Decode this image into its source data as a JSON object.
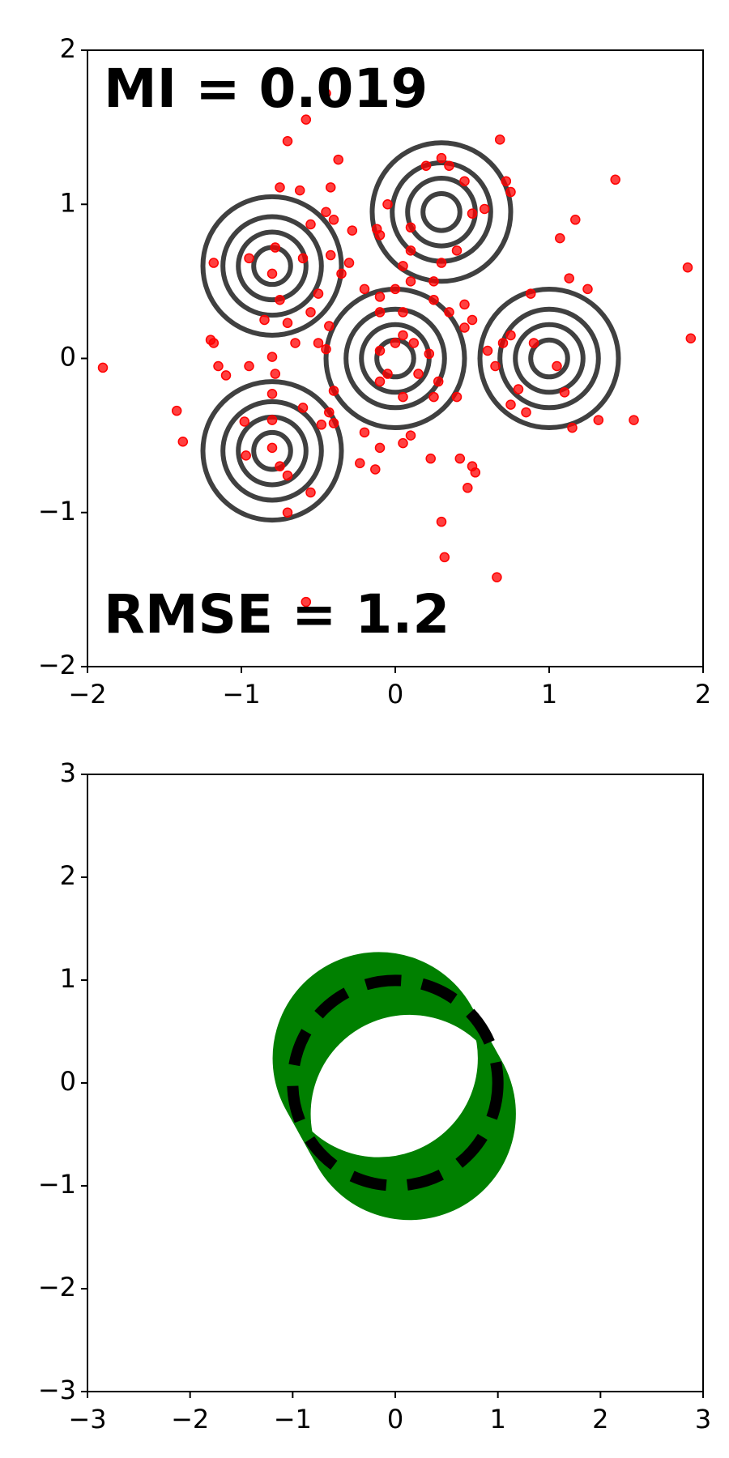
{
  "chart_data": [
    {
      "type": "scatter",
      "annotations": [
        {
          "text": "MI = 0.019"
        },
        {
          "text": "RMSE = 1.2"
        }
      ],
      "x": [
        -1.9,
        -0.45,
        -0.58,
        -0.7,
        -0.37,
        0.68,
        1.43,
        0.72,
        0.75,
        -0.75,
        -0.62,
        -0.42,
        -0.45,
        -0.4,
        -0.55,
        -0.28,
        -0.12,
        -0.1,
        0.1,
        0.5,
        0.58,
        1.17,
        1.07,
        1.9,
        1.92,
        -1.18,
        -0.95,
        -0.78,
        -0.6,
        -0.42,
        -0.3,
        -0.35,
        -0.8,
        -0.75,
        -0.85,
        -0.7,
        -0.5,
        -0.55,
        -0.5,
        -0.65,
        -0.8,
        -0.78,
        -0.95,
        -1.18,
        -1.2,
        -1.15,
        -1.1,
        -0.43,
        -0.45,
        -0.4,
        -0.43,
        -0.48,
        -0.6,
        -0.4,
        -1.42,
        -1.38,
        -0.98,
        -0.97,
        -0.8,
        -0.8,
        -0.8,
        -0.75,
        -0.7,
        -0.7,
        -0.55,
        -0.58,
        -0.2,
        -0.23,
        -0.13,
        -0.1,
        0.05,
        0.1,
        0.23,
        0.42,
        0.5,
        0.52,
        0.47,
        0.3,
        0.32,
        0.66,
        -0.2,
        -0.1,
        0,
        0.1,
        0.25,
        0.35,
        0.45,
        0.5,
        0.45,
        0.6,
        0.7,
        0.75,
        0.65,
        0.8,
        0.75,
        0.85,
        1.15,
        1.32,
        1.55,
        1.05,
        1.1,
        0.9,
        1.25,
        1.13,
        0.88,
        0,
        0.05,
        0.12,
        -0.1,
        -0.05,
        0.15,
        0.28,
        0.25,
        0.4,
        0.05,
        -0.1,
        0.22,
        -0.1,
        0.05,
        0.25,
        0.3,
        0.4,
        0.3,
        0.35,
        0.45,
        0.2,
        -0.05,
        0.1,
        0.05
      ],
      "values": [
        -0.06,
        1.72,
        1.55,
        1.41,
        1.29,
        1.42,
        1.16,
        1.15,
        1.08,
        1.11,
        1.09,
        1.11,
        0.95,
        0.9,
        0.87,
        0.83,
        0.84,
        0.8,
        0.85,
        0.94,
        0.97,
        0.9,
        0.78,
        0.59,
        0.13,
        0.62,
        0.65,
        0.72,
        0.65,
        0.67,
        0.62,
        0.55,
        0.55,
        0.38,
        0.25,
        0.23,
        0.42,
        0.3,
        0.1,
        0.1,
        0.01,
        -0.1,
        -0.05,
        0.1,
        0.12,
        -0.05,
        -0.11,
        0.21,
        0.06,
        -0.21,
        -0.35,
        -0.43,
        -0.32,
        -0.42,
        -0.34,
        -0.54,
        -0.41,
        -0.63,
        -0.23,
        -0.4,
        -0.58,
        -0.7,
        -0.76,
        -1.0,
        -0.87,
        -1.58,
        -0.48,
        -0.68,
        -0.72,
        -0.58,
        -0.55,
        -0.5,
        -0.65,
        -0.65,
        -0.7,
        -0.74,
        -0.84,
        -1.06,
        -1.29,
        -1.42,
        0.45,
        0.4,
        0.45,
        0.5,
        0.38,
        0.3,
        0.35,
        0.25,
        0.2,
        0.05,
        0.1,
        0.15,
        -0.05,
        -0.2,
        -0.3,
        -0.35,
        -0.45,
        -0.4,
        -0.4,
        -0.05,
        -0.22,
        0.1,
        0.45,
        0.52,
        0.42,
        0.1,
        0.15,
        0.1,
        0.05,
        -0.1,
        -0.1,
        -0.15,
        -0.25,
        -0.25,
        -0.25,
        -0.15,
        0.03,
        0.3,
        0.3,
        0.5,
        0.62,
        0.7,
        1.3,
        1.25,
        1.15,
        1.25,
        1.0,
        0.7,
        0.6
      ],
      "color": "#ff0000",
      "contours": {
        "cx": [
          -0.8,
          0.3,
          1,
          0,
          -0.8
        ],
        "cy": [
          0.6,
          0.95,
          0,
          0,
          -0.6
        ],
        "radii": [
          0.12,
          0.22,
          0.32,
          0.45
        ],
        "color": "#404040"
      },
      "xlim": [
        -2,
        2
      ],
      "ylim": [
        -2,
        2
      ],
      "xticks": [
        {
          "value": -2,
          "label": "−2"
        },
        {
          "value": -1,
          "label": "−1"
        },
        0,
        1,
        2
      ],
      "yticks": [
        {
          "value": -2,
          "label": "−2"
        },
        {
          "value": -1,
          "label": "−1"
        },
        0,
        1,
        2
      ]
    },
    {
      "type": "circle",
      "circles": {
        "cx": [
          -0.16,
          -0.133,
          -0.105,
          -0.078,
          -0.051,
          -0.024,
          0.004,
          0.031,
          0.058,
          0.085,
          0.113,
          0.14
        ],
        "cy": [
          0.24,
          0.191,
          0.142,
          0.093,
          0.044,
          -0.005,
          -0.055,
          -0.104,
          -0.153,
          -0.202,
          -0.251,
          -0.3
        ],
        "r": [
          1,
          1,
          1,
          1,
          1,
          1,
          1,
          1,
          1,
          1,
          1,
          1
        ],
        "color": "#008000"
      },
      "reference": {
        "cx": 0,
        "cy": 0,
        "r": 1,
        "color": "#000000"
      },
      "xlim": [
        -3,
        3
      ],
      "ylim": [
        -3,
        3
      ],
      "xticks": [
        {
          "value": -3,
          "label": "−3"
        },
        {
          "value": -2,
          "label": "−2"
        },
        {
          "value": -1,
          "label": "−1"
        },
        0,
        1,
        2,
        3
      ],
      "yticks": [
        {
          "value": -3,
          "label": "−3"
        },
        {
          "value": -2,
          "label": "−2"
        },
        {
          "value": -1,
          "label": "−1"
        },
        0,
        1,
        2,
        3
      ]
    }
  ]
}
